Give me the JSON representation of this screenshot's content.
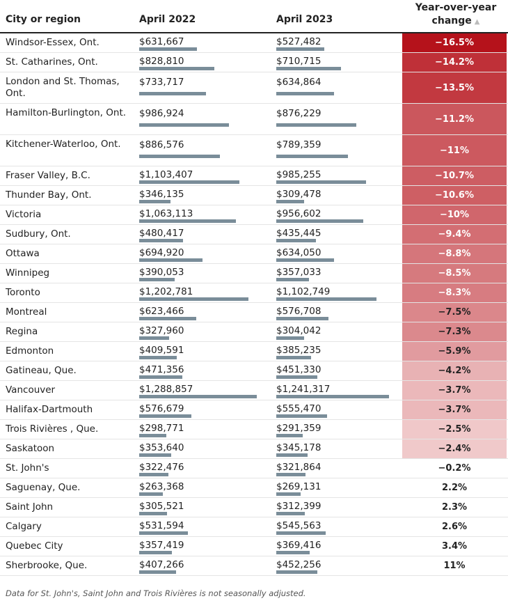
{
  "header": {
    "city": "City or region",
    "year1": "April 2022",
    "year2": "April 2023",
    "change_line1": "Year-over-year",
    "change_line2": "change",
    "sort_icon": "triangle-up-icon"
  },
  "note": "Data for St. John's, Saint John and Trois Rivières is not seasonally adjusted.",
  "colors": {
    "bar": "#7a8d99",
    "negative_max": "#b5121b"
  },
  "chart_data": {
    "type": "table",
    "columns": [
      "City or region",
      "April 2022",
      "April 2023",
      "Year-over-year change"
    ],
    "rows": [
      {
        "city": "Windsor-Essex, Ont.",
        "v2022": 631667,
        "d2022": "$631,667",
        "v2023": 527482,
        "d2023": "$527,482",
        "change": -16.5,
        "change_label": "−16.5%"
      },
      {
        "city": "St. Catharines, Ont.",
        "v2022": 828810,
        "d2022": "$828,810",
        "v2023": 710715,
        "d2023": "$710,715",
        "change": -14.2,
        "change_label": "−14.2%"
      },
      {
        "city": "London and St. Thomas, Ont.",
        "v2022": 733717,
        "d2022": "$733,717",
        "v2023": 634864,
        "d2023": "$634,864",
        "change": -13.5,
        "change_label": "−13.5%"
      },
      {
        "city": "Hamilton-Burlington, Ont.",
        "v2022": 986924,
        "d2022": "$986,924",
        "v2023": 876229,
        "d2023": "$876,229",
        "change": -11.2,
        "change_label": "−11.2%"
      },
      {
        "city": "Kitchener-Waterloo, Ont.",
        "v2022": 886576,
        "d2022": "$886,576",
        "v2023": 789359,
        "d2023": "$789,359",
        "change": -11,
        "change_label": "−11%"
      },
      {
        "city": "Fraser Valley, B.C.",
        "v2022": 1103407,
        "d2022": "$1,103,407",
        "v2023": 985255,
        "d2023": "$985,255",
        "change": -10.7,
        "change_label": "−10.7%"
      },
      {
        "city": "Thunder Bay, Ont.",
        "v2022": 346135,
        "d2022": "$346,135",
        "v2023": 309478,
        "d2023": "$309,478",
        "change": -10.6,
        "change_label": "−10.6%"
      },
      {
        "city": "Victoria",
        "v2022": 1063113,
        "d2022": "$1,063,113",
        "v2023": 956602,
        "d2023": "$956,602",
        "change": -10,
        "change_label": "−10%"
      },
      {
        "city": "Sudbury, Ont.",
        "v2022": 480417,
        "d2022": "$480,417",
        "v2023": 435445,
        "d2023": "$435,445",
        "change": -9.4,
        "change_label": "−9.4%"
      },
      {
        "city": "Ottawa",
        "v2022": 694920,
        "d2022": "$694,920",
        "v2023": 634050,
        "d2023": "$634,050",
        "change": -8.8,
        "change_label": "−8.8%"
      },
      {
        "city": "Winnipeg",
        "v2022": 390053,
        "d2022": "$390,053",
        "v2023": 357033,
        "d2023": "$357,033",
        "change": -8.5,
        "change_label": "−8.5%"
      },
      {
        "city": "Toronto",
        "v2022": 1202781,
        "d2022": "$1,202,781",
        "v2023": 1102749,
        "d2023": "$1,102,749",
        "change": -8.3,
        "change_label": "−8.3%"
      },
      {
        "city": "Montreal",
        "v2022": 623466,
        "d2022": "$623,466",
        "v2023": 576708,
        "d2023": "$576,708",
        "change": -7.5,
        "change_label": "−7.5%"
      },
      {
        "city": "Regina",
        "v2022": 327960,
        "d2022": "$327,960",
        "v2023": 304042,
        "d2023": "$304,042",
        "change": -7.3,
        "change_label": "−7.3%"
      },
      {
        "city": "Edmonton",
        "v2022": 409591,
        "d2022": "$409,591",
        "v2023": 385235,
        "d2023": "$385,235",
        "change": -5.9,
        "change_label": "−5.9%"
      },
      {
        "city": "Gatineau, Que.",
        "v2022": 471356,
        "d2022": "$471,356",
        "v2023": 451330,
        "d2023": "$451,330",
        "change": -4.2,
        "change_label": "−4.2%"
      },
      {
        "city": "Vancouver",
        "v2022": 1288857,
        "d2022": "$1,288,857",
        "v2023": 1241317,
        "d2023": "$1,241,317",
        "change": -3.7,
        "change_label": "−3.7%"
      },
      {
        "city": "Halifax-Dartmouth",
        "v2022": 576679,
        "d2022": "$576,679",
        "v2023": 555470,
        "d2023": "$555,470",
        "change": -3.7,
        "change_label": "−3.7%"
      },
      {
        "city": "Trois Rivières , Que.",
        "v2022": 298771,
        "d2022": "$298,771",
        "v2023": 291359,
        "d2023": "$291,359",
        "change": -2.5,
        "change_label": "−2.5%"
      },
      {
        "city": "Saskatoon",
        "v2022": 353640,
        "d2022": "$353,640",
        "v2023": 345178,
        "d2023": "$345,178",
        "change": -2.4,
        "change_label": "−2.4%"
      },
      {
        "city": "St. John's",
        "v2022": 322476,
        "d2022": "$322,476",
        "v2023": 321864,
        "d2023": "$321,864",
        "change": -0.2,
        "change_label": "−0.2%"
      },
      {
        "city": "Saguenay, Que.",
        "v2022": 263368,
        "d2022": "$263,368",
        "v2023": 269131,
        "d2023": "$269,131",
        "change": 2.2,
        "change_label": "2.2%"
      },
      {
        "city": "Saint John",
        "v2022": 305521,
        "d2022": "$305,521",
        "v2023": 312399,
        "d2023": "$312,399",
        "change": 2.3,
        "change_label": "2.3%"
      },
      {
        "city": "Calgary",
        "v2022": 531594,
        "d2022": "$531,594",
        "v2023": 545563,
        "d2023": "$545,563",
        "change": 2.6,
        "change_label": "2.6%"
      },
      {
        "city": "Quebec City",
        "v2022": 357419,
        "d2022": "$357,419",
        "v2023": 369416,
        "d2023": "$369,416",
        "change": 3.4,
        "change_label": "3.4%"
      },
      {
        "city": "Sherbrooke, Que.",
        "v2022": 407266,
        "d2022": "$407,266",
        "v2023": 452256,
        "d2023": "$452,256",
        "change": 11,
        "change_label": "11%"
      }
    ]
  }
}
